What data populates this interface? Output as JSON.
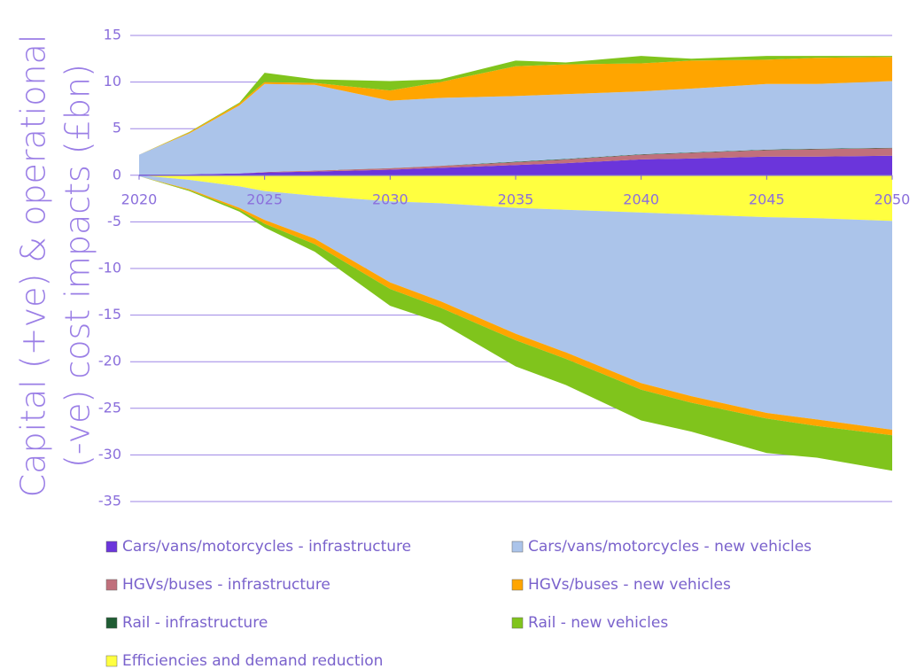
{
  "chart_data": {
    "type": "stacked_area",
    "y_axis_label": [
      "Capital (+ve) & operational",
      "(-ve) cost impacts (£bn)"
    ],
    "x": [
      2020,
      2022,
      2024,
      2025,
      2027,
      2030,
      2032,
      2035,
      2037,
      2040,
      2042,
      2045,
      2047,
      2050
    ],
    "xlim": [
      2020,
      2050
    ],
    "xticks": [
      2020,
      2025,
      2030,
      2035,
      2040,
      2045,
      2050
    ],
    "ylim": [
      -35,
      15
    ],
    "yticks": [
      15,
      10,
      5,
      0,
      -5,
      -10,
      -15,
      -20,
      -25,
      -30,
      -35
    ],
    "grid": true,
    "legend": "bottom",
    "series": [
      {
        "name": "Cars/vans/motorcycles - infrastructure",
        "color": "#6b35db",
        "capital": [
          0,
          0.1,
          0.2,
          0.3,
          0.4,
          0.6,
          0.8,
          1.1,
          1.3,
          1.7,
          1.8,
          2.0,
          2.0,
          2.1
        ]
      },
      {
        "name": "Cars/vans/motorcycles - new vehicles",
        "color": "#abc4ea",
        "capital": [
          2.2,
          4.4,
          7.3,
          9.45,
          9.2,
          7.23,
          7.28,
          7.05,
          6.95,
          6.75,
          6.85,
          7.05,
          6.95,
          7.15
        ],
        "operational": [
          -0.1,
          -1.0,
          -2.3,
          -3.1,
          -4.6,
          -8.7,
          -10.5,
          -13.5,
          -15.3,
          -18.3,
          -19.5,
          -21.0,
          -21.6,
          -22.4
        ]
      },
      {
        "name": "HGVs/buses - infrastructure",
        "color": "#c0707c",
        "capital": [
          0,
          0,
          0,
          0.05,
          0.1,
          0.15,
          0.2,
          0.3,
          0.4,
          0.5,
          0.6,
          0.7,
          0.8,
          0.8
        ]
      },
      {
        "name": "HGVs/buses - new vehicles",
        "color": "#ffa500",
        "capital": [
          0,
          0.1,
          0.2,
          0.2,
          0.2,
          1.1,
          1.7,
          3.2,
          3.2,
          3.0,
          3.0,
          2.6,
          2.8,
          2.6
        ],
        "operational": [
          0,
          -0.1,
          -0.2,
          -0.4,
          -0.6,
          -0.7,
          -0.7,
          -0.7,
          -0.7,
          -0.7,
          -0.7,
          -0.6,
          -0.7,
          -0.6
        ]
      },
      {
        "name": "Rail - infrastructure",
        "color": "#1f5c33",
        "capital": [
          0,
          0,
          0,
          0,
          0,
          0.02,
          0.02,
          0.05,
          0.05,
          0.05,
          0.05,
          0.05,
          0.05,
          0.05
        ]
      },
      {
        "name": "Rail - new vehicles",
        "color": "#80c41c",
        "capital": [
          0,
          0.05,
          0.1,
          1.0,
          0.4,
          1.0,
          0.3,
          0.6,
          0.2,
          0.8,
          0.2,
          0.4,
          0.2,
          0.1
        ],
        "operational": [
          0,
          -0.1,
          -0.2,
          -0.4,
          -0.8,
          -1.8,
          -1.6,
          -2.8,
          -2.8,
          -3.3,
          -3.1,
          -3.7,
          -3.4,
          -3.8
        ]
      },
      {
        "name": "Efficiencies and demand reduction",
        "color": "#ffff40",
        "operational": [
          0,
          -0.5,
          -1.2,
          -1.7,
          -2.2,
          -2.8,
          -3.0,
          -3.5,
          -3.7,
          -4.0,
          -4.2,
          -4.5,
          -4.6,
          -4.9
        ]
      }
    ]
  }
}
